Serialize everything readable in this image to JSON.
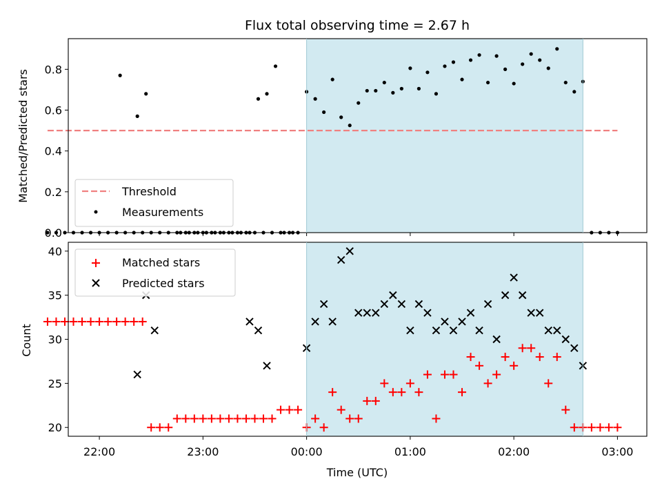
{
  "chart_data": [
    {
      "type": "scatter",
      "title": "Flux total observing time = 2.67 h",
      "xlabel": "",
      "ylabel": "Matched/Predicted stars",
      "xlim": [
        "21:42",
        "03:17"
      ],
      "ylim": [
        0,
        0.95
      ],
      "yticks": [
        0.0,
        0.2,
        0.4,
        0.6,
        0.8
      ],
      "ytick_labels": [
        "0.0",
        "0.2",
        "0.4",
        "0.6",
        "0.8"
      ],
      "highlight_span": {
        "start": "00:00",
        "end": "02:40",
        "color": "#add8e6"
      },
      "threshold": {
        "name": "Threshold",
        "value": 0.5,
        "x_start": "21:30",
        "x_end": "03:00",
        "color": "#f08080"
      },
      "series": [
        {
          "name": "Measurements",
          "color": "#000000",
          "x": [
            "21:30",
            "21:35",
            "21:40",
            "21:45",
            "21:50",
            "21:55",
            "22:00",
            "22:05",
            "22:10",
            "22:15",
            "22:20",
            "22:25",
            "22:30",
            "22:35",
            "22:40",
            "22:45",
            "22:50",
            "22:55",
            "23:00",
            "23:05",
            "23:10",
            "23:15",
            "23:20",
            "23:25",
            "23:30",
            "23:35",
            "23:40",
            "23:45",
            "23:50",
            "23:55",
            "00:00",
            "00:05",
            "00:10",
            "00:15",
            "00:20",
            "00:25",
            "00:30",
            "00:35",
            "00:40",
            "00:45",
            "00:50",
            "00:55",
            "01:00",
            "01:05",
            "01:10",
            "01:15",
            "01:20",
            "01:25",
            "01:30",
            "01:35",
            "01:40",
            "01:45",
            "01:50",
            "01:55",
            "02:00",
            "02:05",
            "02:10",
            "02:15",
            "02:20",
            "02:25",
            "02:30",
            "02:35",
            "02:40",
            "02:45",
            "02:50",
            "02:55",
            "03:00"
          ],
          "y": [
            0,
            0,
            0,
            0,
            0,
            0,
            0,
            0,
            0,
            0,
            0,
            0,
            0,
            0,
            0,
            0,
            0,
            0,
            0,
            0,
            0,
            0,
            0,
            0,
            0,
            0,
            0,
            0,
            0,
            0,
            0.69,
            0.655,
            0.59,
            0.75,
            0.565,
            0.525,
            0.635,
            0.695,
            0.695,
            0.735,
            0.685,
            0.705,
            0.805,
            0.705,
            0.785,
            0.68,
            0.815,
            0.835,
            0.75,
            0.845,
            0.87,
            0.735,
            0.865,
            0.8,
            0.73,
            0.825,
            0.875,
            0.845,
            0.805,
            0.9,
            0.735,
            0.69,
            0.74,
            0,
            0,
            0,
            0
          ]
        }
      ],
      "extra_points": {
        "x": [
          "22:12",
          "22:22",
          "22:27",
          "22:47",
          "22:52",
          "22:57",
          "23:02",
          "23:07",
          "23:12",
          "23:17",
          "23:22",
          "23:27",
          "23:32",
          "23:37",
          "23:42",
          "23:47",
          "23:52"
        ],
        "note_values": [
          0.77,
          0.57,
          0.68,
          0,
          0,
          0,
          0,
          0,
          0,
          0,
          0,
          0,
          0.655,
          0.68,
          0.815,
          0,
          0
        ]
      },
      "legend": {
        "location": "lower-left",
        "entries": [
          "Threshold",
          "Measurements"
        ]
      }
    },
    {
      "type": "scatter",
      "xlabel": "Time (UTC)",
      "ylabel": "Count",
      "xlim": [
        "21:42",
        "03:17"
      ],
      "ylim": [
        19,
        41
      ],
      "yticks": [
        20,
        25,
        30,
        35,
        40
      ],
      "xticks": [
        "22:00",
        "23:00",
        "00:00",
        "01:00",
        "02:00",
        "03:00"
      ],
      "highlight_span": {
        "start": "00:00",
        "end": "02:40",
        "color": "#add8e6"
      },
      "series": [
        {
          "name": "Matched stars",
          "marker": "+",
          "color": "#ff0000",
          "x": [
            "21:30",
            "21:35",
            "21:40",
            "21:45",
            "21:50",
            "21:55",
            "22:00",
            "22:05",
            "22:10",
            "22:15",
            "22:20",
            "22:25",
            "22:30",
            "22:35",
            "22:40",
            "22:45",
            "22:50",
            "22:55",
            "23:00",
            "23:05",
            "23:10",
            "23:15",
            "23:20",
            "23:25",
            "23:30",
            "23:35",
            "23:40",
            "23:45",
            "23:50",
            "23:55",
            "00:00",
            "00:05",
            "00:10",
            "00:15",
            "00:20",
            "00:25",
            "00:30",
            "00:35",
            "00:40",
            "00:45",
            "00:50",
            "00:55",
            "01:00",
            "01:05",
            "01:10",
            "01:15",
            "01:20",
            "01:25",
            "01:30",
            "01:35",
            "01:40",
            "01:45",
            "01:50",
            "01:55",
            "02:00",
            "02:05",
            "02:10",
            "02:15",
            "02:20",
            "02:25",
            "02:30",
            "02:35",
            "02:40",
            "02:45",
            "02:50",
            "02:55",
            "03:00"
          ],
          "y": [
            32,
            32,
            32,
            32,
            32,
            32,
            32,
            32,
            32,
            32,
            32,
            32,
            20,
            20,
            20,
            21,
            21,
            21,
            21,
            21,
            21,
            21,
            21,
            21,
            21,
            21,
            21,
            22,
            22,
            22,
            20,
            21,
            20,
            24,
            22,
            21,
            21,
            23,
            23,
            25,
            24,
            24,
            25,
            24,
            26,
            21,
            26,
            26,
            24,
            28,
            27,
            25,
            26,
            28,
            27,
            29,
            29,
            28,
            25,
            28,
            22,
            20,
            20,
            20,
            20,
            20,
            20
          ]
        },
        {
          "name": "Predicted stars",
          "marker": "x",
          "color": "#000000",
          "x": [
            "22:22",
            "22:27",
            "22:32",
            "23:27",
            "23:32",
            "23:37",
            "00:00",
            "00:05",
            "00:10",
            "00:15",
            "00:20",
            "00:25",
            "00:30",
            "00:35",
            "00:40",
            "00:45",
            "00:50",
            "00:55",
            "01:00",
            "01:05",
            "01:10",
            "01:15",
            "01:20",
            "01:25",
            "01:30",
            "01:35",
            "01:40",
            "01:45",
            "01:50",
            "01:55",
            "02:00",
            "02:05",
            "02:10",
            "02:15",
            "02:20",
            "02:25",
            "02:30",
            "02:35",
            "02:40"
          ],
          "y": [
            26,
            35,
            31,
            32,
            31,
            27,
            29,
            32,
            34,
            32,
            39,
            40,
            33,
            33,
            33,
            34,
            35,
            34,
            31,
            34,
            33,
            31,
            32,
            31,
            32,
            33,
            31,
            34,
            30,
            35,
            37,
            35,
            33,
            33,
            31,
            31,
            30,
            29,
            27
          ]
        }
      ],
      "legend": {
        "location": "upper-left",
        "entries": [
          "Matched stars",
          "Predicted stars"
        ]
      }
    }
  ]
}
